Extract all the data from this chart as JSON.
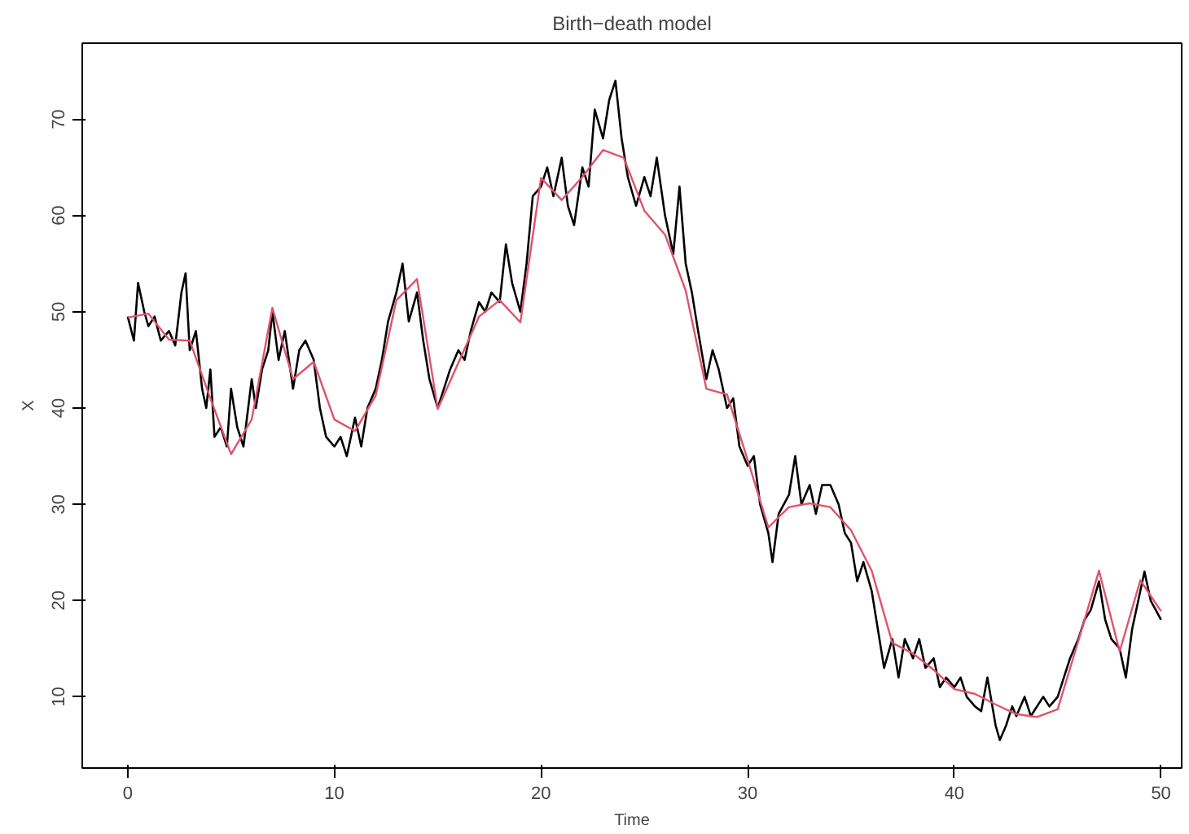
{
  "chart_data": {
    "type": "line",
    "title": "Birth−death model",
    "xlabel": "Time",
    "ylabel": "X",
    "xlim": [
      -2.2,
      51
    ],
    "ylim": [
      2.6,
      77.9
    ],
    "xticks": [
      0,
      10,
      20,
      30,
      40,
      50
    ],
    "yticks": [
      10,
      20,
      30,
      40,
      50,
      60,
      70
    ],
    "grid": false,
    "line_style": "solid",
    "marker": "none",
    "series": [
      {
        "color": "#000000",
        "x": [
          0,
          0.3,
          0.5,
          0.8,
          1,
          1.3,
          1.6,
          2,
          2.3,
          2.6,
          2.8,
          3.0,
          3.3,
          3.6,
          3.8,
          4.0,
          4.2,
          4.5,
          4.8,
          5.0,
          5.3,
          5.6,
          6.0,
          6.2,
          6.5,
          6.8,
          7,
          7.3,
          7.6,
          8,
          8.3,
          8.6,
          9,
          9.3,
          9.6,
          10,
          10.3,
          10.6,
          11,
          11.3,
          11.6,
          12,
          12.3,
          12.6,
          13,
          13.3,
          13.6,
          14,
          14.3,
          14.6,
          15,
          15.3,
          15.6,
          16,
          16.3,
          16.6,
          17,
          17.3,
          17.6,
          18,
          18.3,
          18.6,
          19,
          19.3,
          19.6,
          20,
          20.3,
          20.6,
          21,
          21.3,
          21.6,
          22,
          22.3,
          22.6,
          23,
          23.3,
          23.6,
          23.9,
          24.2,
          24.6,
          25,
          25.3,
          25.6,
          26,
          26.4,
          26.7,
          27,
          27.3,
          27.6,
          28,
          28.3,
          28.6,
          29,
          29.3,
          29.6,
          30,
          30.3,
          30.6,
          31,
          31.2,
          31.5,
          32,
          32.3,
          32.6,
          33,
          33.3,
          33.6,
          34,
          34.4,
          34.7,
          35,
          35.3,
          35.6,
          36,
          36.3,
          36.6,
          37,
          37.3,
          37.6,
          38,
          38.3,
          38.6,
          39,
          39.3,
          39.6,
          40,
          40.3,
          40.6,
          41,
          41.3,
          41.6,
          42,
          42.2,
          42.5,
          42.8,
          43,
          43.4,
          43.7,
          44,
          44.3,
          44.6,
          45,
          45.3,
          45.6,
          46,
          46.3,
          46.6,
          47,
          47.3,
          47.6,
          48,
          48.3,
          48.6,
          49,
          49.2,
          49.5,
          50
        ],
        "values": [
          49.5,
          47,
          53,
          50,
          48.5,
          49.5,
          47,
          48,
          46.5,
          52,
          54,
          46,
          48,
          42,
          40,
          44,
          37,
          38,
          36,
          42,
          38,
          36,
          43,
          40,
          44,
          46,
          50,
          45,
          48,
          42,
          46,
          47,
          45,
          40,
          37,
          36,
          37,
          35,
          39,
          36,
          40,
          42,
          45,
          49,
          52,
          55,
          49,
          52,
          47,
          43,
          40,
          42,
          44,
          46,
          45,
          48,
          51,
          50,
          52,
          51,
          57,
          53,
          50,
          55,
          62,
          63,
          65,
          62,
          66,
          61,
          59,
          65,
          63,
          71,
          68,
          72,
          74,
          68,
          64,
          61,
          64,
          62,
          66,
          60,
          56,
          63,
          55,
          52,
          48,
          43,
          46,
          44,
          40,
          41,
          36,
          34,
          35,
          30,
          27,
          24,
          29,
          31,
          35,
          30,
          32,
          29,
          32,
          32,
          30,
          27,
          26,
          22,
          24,
          21,
          17,
          13,
          16,
          12,
          16,
          14,
          16,
          13,
          14,
          11,
          12,
          11,
          12,
          10,
          9,
          8.5,
          12,
          7,
          5.5,
          7,
          9,
          8,
          10,
          8,
          9,
          10,
          9,
          10,
          12,
          14,
          16,
          18,
          19,
          22,
          18,
          16,
          15,
          12,
          17,
          21,
          23,
          20,
          18
        ]
      },
      {
        "color": "#df536b",
        "x": [
          0,
          1,
          2,
          3,
          4,
          5,
          6,
          7,
          8,
          9,
          10,
          11,
          12,
          13,
          14,
          15,
          16,
          17,
          18,
          19,
          20,
          21,
          22,
          23,
          24,
          25,
          26,
          27,
          28,
          29,
          30,
          31,
          32,
          33,
          34,
          35,
          36,
          37,
          38,
          39,
          40,
          41,
          42,
          43,
          44,
          45,
          46,
          47,
          48,
          49,
          50
        ],
        "values": [
          49.4,
          49.8,
          47.1,
          47.0,
          41,
          35.2,
          38.8,
          50.4,
          43.0,
          44.8,
          38.8,
          37.6,
          41.3,
          51.2,
          53.4,
          39.9,
          44.7,
          49.5,
          51.2,
          48.9,
          63.9,
          61.6,
          64.0,
          66.8,
          66.0,
          60.5,
          58.0,
          52.2,
          42.0,
          41.4,
          34.6,
          27.6,
          29.7,
          30.1,
          29.7,
          27.3,
          23.1,
          15.6,
          14.5,
          12.8,
          10.8,
          10.3,
          9.2,
          8.2,
          7.9,
          8.7,
          15.8,
          23.1,
          14.7,
          22.1,
          18.9
        ]
      }
    ]
  }
}
